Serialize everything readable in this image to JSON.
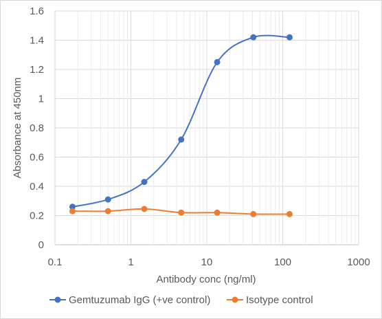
{
  "chart_data": {
    "type": "line",
    "xscale": "log",
    "xlim": [
      0.1,
      1000
    ],
    "ylim": [
      0,
      1.6
    ],
    "xticks": [
      "0.1",
      "1",
      "10",
      "100",
      "1000"
    ],
    "yticks": [
      "0",
      "0.2",
      "0.4",
      "0.6",
      "0.8",
      "1",
      "1.2",
      "1.4",
      "1.6"
    ],
    "xlabel": "Antibody conc (ng/ml)",
    "ylabel": "Absorbance at 450nm",
    "grid": {
      "major": true,
      "minor_x": true
    },
    "legend": "bottom",
    "series": [
      {
        "name": "Gemtuzumab IgG (+ve control)",
        "color": "#4472c4",
        "x": [
          0.17,
          0.5,
          1.5,
          4.6,
          13.7,
          41,
          123
        ],
        "y": [
          0.26,
          0.31,
          0.43,
          0.72,
          1.25,
          1.42,
          1.42
        ]
      },
      {
        "name": "Isotype control",
        "color": "#ed7d31",
        "x": [
          0.17,
          0.5,
          1.5,
          4.6,
          13.7,
          41,
          123
        ],
        "y": [
          0.23,
          0.23,
          0.245,
          0.22,
          0.22,
          0.21,
          0.21
        ]
      }
    ]
  }
}
